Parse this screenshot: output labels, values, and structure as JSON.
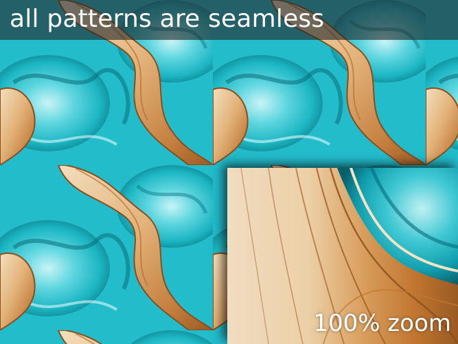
{
  "banner": {
    "text": "all patterns are seamless"
  },
  "zoom_label": {
    "text": "100% zoom"
  },
  "pattern": {
    "description_colors": {
      "turquoise_light": "#7fe3ea",
      "turquoise": "#1cb6c3",
      "turquoise_dark": "#0a6d7a",
      "wood_light": "#f2dcb9",
      "wood": "#d59a5a",
      "wood_dark": "#9c5a22"
    }
  }
}
